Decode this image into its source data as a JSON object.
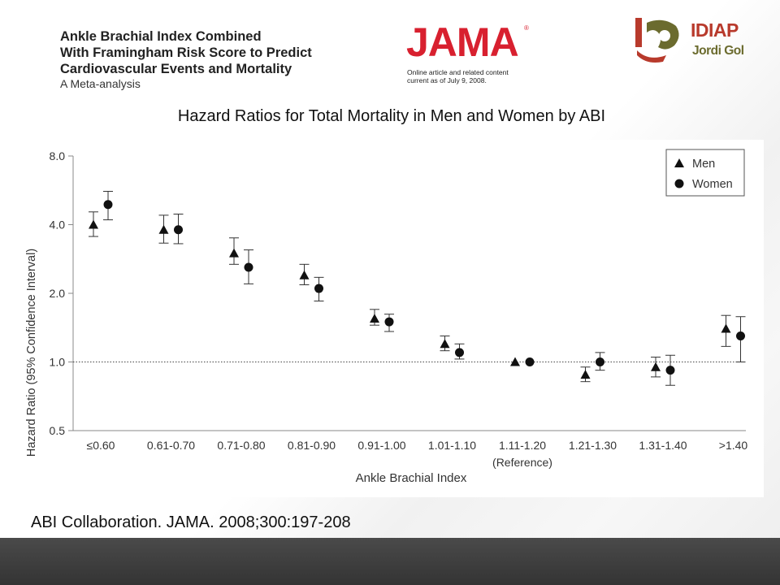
{
  "header": {
    "paper_title_lines": [
      "Ankle Brachial Index Combined",
      "With Framingham Risk Score to Predict",
      "Cardiovascular Events and Mortality"
    ],
    "paper_subtitle": "A Meta-analysis",
    "journal_logo": "JAMA",
    "journal_note_lines": [
      "Online article and related content",
      "current as of July 9, 2008."
    ],
    "org_logo": "IDIAP",
    "org_sub": "Jordi Gol"
  },
  "citation": "ABI Collaboration. JAMA. 2008;300:197-208",
  "colors": {
    "marker": "#111111",
    "brand_red": "#d8202f",
    "org_red": "#b83a2c",
    "org_olive": "#6b6b2e",
    "footer": "#3a3a3a"
  },
  "chart_data": {
    "type": "scatter",
    "title": "Hazard Ratios for Total Mortality in Men and Women by ABI",
    "xlabel": "Ankle Brachial Index",
    "ylabel": "Hazard Ratio (95% Confidence Interval)",
    "y_scale": "log2",
    "ylim": [
      0.5,
      8.0
    ],
    "y_ticks": [
      "0.5",
      "1.0",
      "2.0",
      "4.0",
      "8.0"
    ],
    "reference_line": 1.0,
    "grid": false,
    "legend_position": "top-right",
    "categories": [
      "≤0.60",
      "0.61-0.70",
      "0.71-0.80",
      "0.81-0.90",
      "0.91-1.00",
      "1.01-1.10",
      "1.11-1.20",
      "1.21-1.30",
      "1.31-1.40",
      ">1.40"
    ],
    "reference_category_note": "(Reference)",
    "series": [
      {
        "name": "Men",
        "marker": "triangle",
        "values": [
          4.0,
          3.8,
          3.0,
          2.4,
          1.55,
          1.2,
          1.0,
          0.88,
          0.95,
          1.4
        ],
        "ci_low": [
          3.55,
          3.32,
          2.68,
          2.18,
          1.45,
          1.12,
          1.0,
          0.82,
          0.86,
          1.17
        ],
        "ci_high": [
          4.55,
          4.4,
          3.5,
          2.68,
          1.7,
          1.3,
          1.0,
          0.95,
          1.05,
          1.6
        ]
      },
      {
        "name": "Women",
        "marker": "circle",
        "values": [
          4.9,
          3.8,
          2.6,
          2.1,
          1.5,
          1.1,
          1.0,
          1.0,
          0.92,
          1.3
        ],
        "ci_low": [
          4.2,
          3.3,
          2.2,
          1.85,
          1.36,
          1.03,
          1.0,
          0.92,
          0.79,
          1.0
        ],
        "ci_high": [
          5.6,
          4.45,
          3.1,
          2.35,
          1.62,
          1.2,
          1.0,
          1.1,
          1.07,
          1.58
        ]
      }
    ]
  }
}
